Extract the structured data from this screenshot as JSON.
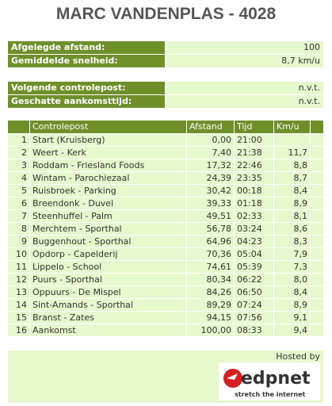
{
  "header": {
    "title": "MARC VANDENPLAS - 4028"
  },
  "summary": [
    [
      "Afgelegde afstand:",
      "100"
    ],
    [
      "Gemiddelde snelheid:",
      "8,7 km/u"
    ]
  ],
  "forecast": [
    [
      "Volgende controlepost:",
      "n.v.t."
    ],
    [
      "Geschatte aankomsttijd:",
      "n.v.t."
    ]
  ],
  "table": {
    "columns": [
      null,
      "Controlepost",
      "Afstand",
      "Tijd",
      "Km/u"
    ],
    "rows": [
      [
        1,
        "Start (Kruisberg)",
        "0,00",
        "21:00",
        null
      ],
      [
        2,
        "Weert - Kerk",
        "7,40",
        "21:38",
        "11,7"
      ],
      [
        3,
        "Roddam - Friesland Foods",
        "17,32",
        "22:46",
        "8,8"
      ],
      [
        4,
        "Wintam - Parochiezaal",
        "24,39",
        "23:35",
        "8,7"
      ],
      [
        5,
        "Ruisbroek - Parking",
        "30,42",
        "00:18",
        "8,4"
      ],
      [
        6,
        "Breendonk - Duvel",
        "39,33",
        "01:18",
        "8,9"
      ],
      [
        7,
        "Steenhuffel - Palm",
        "49,51",
        "02:33",
        "8,1"
      ],
      [
        8,
        "Merchtem - Sporthal",
        "56,78",
        "03:24",
        "8,6"
      ],
      [
        9,
        "Buggenhout - Sporthal",
        "64,96",
        "04:23",
        "8,3"
      ],
      [
        10,
        "Opdorp - Capelderij",
        "70,36",
        "05:04",
        "7,9"
      ],
      [
        11,
        "Lippelo - School",
        "74,61",
        "05:39",
        "7,3"
      ],
      [
        12,
        "Puurs - Sporthal",
        "80,34",
        "06:22",
        "8,0"
      ],
      [
        13,
        "Oppuurs - De Mispel",
        "84,26",
        "06:50",
        "8,4"
      ],
      [
        14,
        "Sint-Amands - Sporthal",
        "89,29",
        "07:24",
        "8,9"
      ],
      [
        15,
        "Branst - Zates",
        "94,15",
        "07:56",
        "9,1"
      ],
      [
        16,
        "Aankomst",
        "100,00",
        "08:33",
        "9,4"
      ]
    ]
  },
  "footer": {
    "hosted": "Hosted by",
    "logo": "edpnet",
    "slogan": "stretch the internet"
  }
}
